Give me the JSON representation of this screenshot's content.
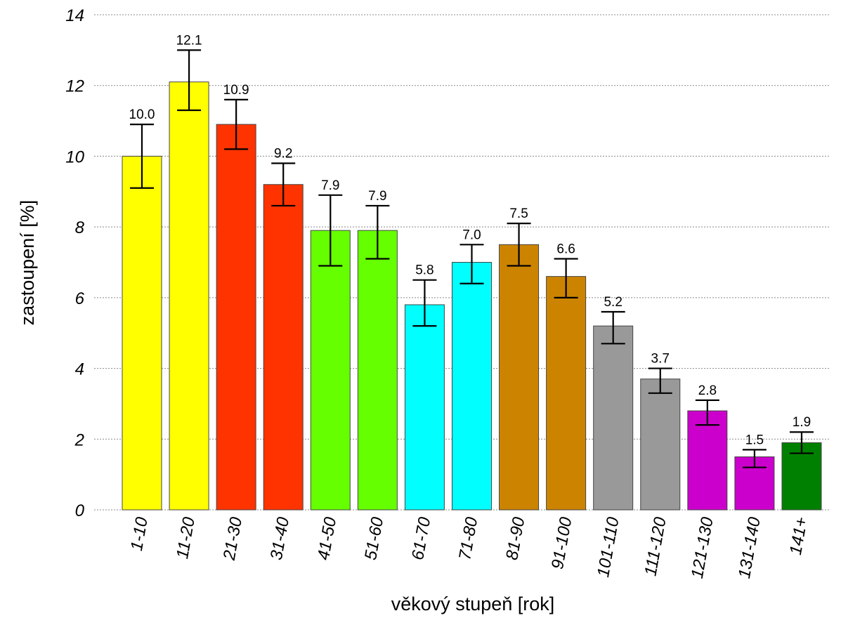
{
  "chart_data": {
    "type": "bar",
    "title": "",
    "xlabel": "věkový stupeň [rok]",
    "ylabel": "zastoupení [%]",
    "ylim": [
      0,
      14
    ],
    "yticks": [
      "0",
      "2",
      "4",
      "6",
      "8",
      "10",
      "12",
      "14"
    ],
    "grid": "horizontal dotted",
    "categories": [
      "1-10",
      "11-20",
      "21-30",
      "31-40",
      "41-50",
      "51-60",
      "61-70",
      "71-80",
      "81-90",
      "91-100",
      "101-110",
      "111-120",
      "121-130",
      "131-140",
      "141+"
    ],
    "values": [
      10.0,
      12.1,
      10.9,
      9.2,
      7.9,
      7.9,
      5.8,
      7.0,
      7.5,
      6.6,
      5.2,
      3.7,
      2.8,
      1.5,
      1.9
    ],
    "value_labels": [
      "10.0",
      "12.1",
      "10.9",
      "9.2",
      "7.9",
      "7.9",
      "5.8",
      "7.0",
      "7.5",
      "6.6",
      "5.2",
      "3.7",
      "2.8",
      "1.5",
      "1.9"
    ],
    "error_low": [
      9.1,
      11.3,
      10.2,
      8.6,
      6.9,
      7.1,
      5.2,
      6.4,
      6.9,
      6.0,
      4.7,
      3.3,
      2.4,
      1.2,
      1.6
    ],
    "error_high": [
      10.9,
      13.0,
      11.6,
      9.8,
      8.9,
      8.6,
      6.5,
      7.5,
      8.1,
      7.1,
      5.6,
      4.0,
      3.1,
      1.7,
      2.2
    ],
    "colors": [
      "#ffff00",
      "#ffff00",
      "#ff3300",
      "#ff3300",
      "#66ff00",
      "#66ff00",
      "#00ffff",
      "#00ffff",
      "#cc8400",
      "#cc8400",
      "#999999",
      "#999999",
      "#cc00cc",
      "#cc00cc",
      "#008000"
    ]
  }
}
